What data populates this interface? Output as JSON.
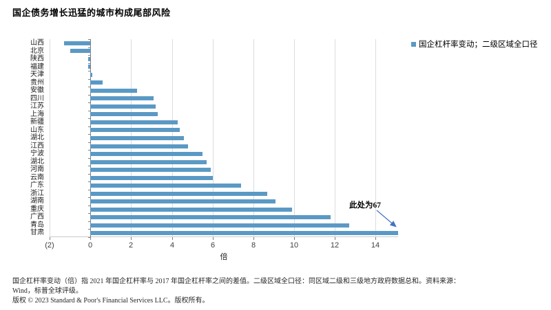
{
  "title": "国企债务增长迅猛的城市构成尾部风险",
  "legend": {
    "label": "国企杠杆率变动；二级区域全口径",
    "marker_color": "#5B99C5"
  },
  "annotation": {
    "text": "此处为67",
    "arrow_color": "#4472C4",
    "points_to": "甘肃"
  },
  "xaxis": {
    "label": "倍"
  },
  "footnotes": {
    "definition": "国企杠杆率变动（倍）指 2021 年国企杠杆率与 2017 年国企杠杆率之间的差值。二级区域全口径：同区域二级和三级地方政府数据总和。资料来源：",
    "source": "Wind，标普全球评级。",
    "copyright": "版权 © 2023 Standard & Poor's Financial Services LLC。版权所有。"
  },
  "chart_data": {
    "type": "bar",
    "orientation": "horizontal",
    "title": "国企债务增长迅猛的城市构成尾部风险",
    "legend_entries": [
      "国企杠杆率变动；二级区域全口径"
    ],
    "legend_position": "top-right",
    "xlabel": "倍",
    "ylabel": "",
    "xlim": [
      -2,
      15.1
    ],
    "grid": true,
    "bar_color": "#5B99C5",
    "xticks": [
      -2,
      0,
      2,
      4,
      6,
      8,
      10,
      12,
      14
    ],
    "xtick_labels": [
      "(2)",
      "0",
      "2",
      "4",
      "6",
      "8",
      "10",
      "12",
      "14"
    ],
    "categories": [
      "山西",
      "北京",
      "陕西",
      "福建",
      "天津",
      "贵州",
      "安徽",
      "四川",
      "江苏",
      "上海",
      "新疆",
      "山东",
      "湖北",
      "江西",
      "宁波",
      "湖北",
      "河南",
      "云南",
      "广东",
      "浙江",
      "湖南",
      "重庆",
      "广西",
      "青岛",
      "甘肃"
    ],
    "values": [
      -1.3,
      -1.0,
      -0.1,
      -0.1,
      0.1,
      0.6,
      2.3,
      3.1,
      3.2,
      3.3,
      4.3,
      4.4,
      4.6,
      4.8,
      5.5,
      5.7,
      5.9,
      6.0,
      7.4,
      8.7,
      9.1,
      9.9,
      11.8,
      12.7,
      67
    ],
    "note": "last bar (甘肃, value 67) is clipped at the axis maximum"
  }
}
